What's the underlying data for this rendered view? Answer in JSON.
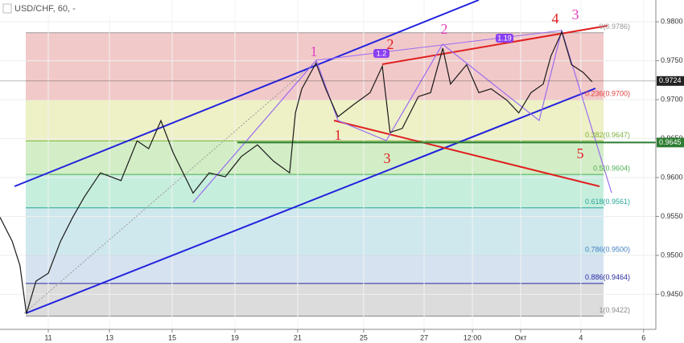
{
  "chart_data": {
    "type": "line",
    "title": "USD/CHF, 60, -",
    "x": [
      0,
      1.9,
      3.1,
      4.1,
      5.6,
      7.5,
      9.4,
      11.3,
      13.1,
      15.6,
      18.8,
      21.3,
      23.1,
      25,
      26.9,
      30,
      32.5,
      35,
      37.5,
      40,
      42.5,
      45,
      45.9,
      46.9,
      49.1,
      50.6,
      52.5,
      55,
      57.5,
      59.4,
      60.6,
      62.5,
      65,
      66.9,
      68.8,
      70,
      72.5,
      74.4,
      76.3,
      78.8,
      80.6,
      82.5,
      84.4,
      85.6,
      87.3,
      88.8,
      90.6,
      92
    ],
    "series": [
      {
        "name": "USD/CHF",
        "color": "#1a1a1a",
        "values": [
          0.9549,
          0.9518,
          0.9487,
          0.9425,
          0.9467,
          0.9477,
          0.9518,
          0.9549,
          0.9575,
          0.9606,
          0.9596,
          0.9647,
          0.9637,
          0.9673,
          0.9632,
          0.958,
          0.9606,
          0.9601,
          0.9627,
          0.9642,
          0.9621,
          0.9606,
          0.9683,
          0.9714,
          0.9747,
          0.9714,
          0.9678,
          0.9694,
          0.9709,
          0.9743,
          0.9658,
          0.9663,
          0.9704,
          0.9709,
          0.9766,
          0.972,
          0.9745,
          0.9709,
          0.9714,
          0.9699,
          0.9683,
          0.9709,
          0.972,
          0.9756,
          0.9787,
          0.9745,
          0.9735,
          0.9723
        ]
      }
    ],
    "xlim": [
      0,
      101.9
    ],
    "ylim": [
      0.9405,
      0.9828
    ],
    "xticks": [
      {
        "value": 7.5,
        "label": "11"
      },
      {
        "value": 17,
        "label": "13"
      },
      {
        "value": 26.75,
        "label": "15"
      },
      {
        "value": 36.5,
        "label": "19"
      },
      {
        "value": 46.25,
        "label": "21"
      },
      {
        "value": 56.5,
        "label": "25"
      },
      {
        "value": 65.9,
        "label": "27"
      },
      {
        "value": 73.4,
        "label": "12:00"
      },
      {
        "value": 80.9,
        "label": "Окт"
      },
      {
        "value": 90.25,
        "label": "4"
      },
      {
        "value": 100,
        "label": "6"
      }
    ],
    "yticks": [
      {
        "value": 0.945,
        "label": "0.9450"
      },
      {
        "value": 0.95,
        "label": "0.9500"
      },
      {
        "value": 0.955,
        "label": "0.9550"
      },
      {
        "value": 0.96,
        "label": "0.9600"
      },
      {
        "value": 0.965,
        "label": "0.9650"
      },
      {
        "value": 0.97,
        "label": "0.9700"
      },
      {
        "value": 0.975,
        "label": "0.9750"
      },
      {
        "value": 0.98,
        "label": "0.9800"
      }
    ],
    "fib_levels": [
      {
        "value": 0.9786,
        "label": "0(0.9786)",
        "color": "#999999",
        "band": "#f2c9c9"
      },
      {
        "value": 0.97,
        "label": "0.236(0.9700)",
        "color": "#e04040",
        "band": "#eef0c6"
      },
      {
        "value": 0.9647,
        "label": "0.382(0.9647)",
        "color": "#7cb342",
        "band": "#d3eec6"
      },
      {
        "value": 0.9604,
        "label": "0.5(0.9604)",
        "color": "#4caf50",
        "band": "#c6eedd"
      },
      {
        "value": 0.9561,
        "label": "0.618(0.9561)",
        "color": "#26a69a",
        "band": "#cfe8ee"
      },
      {
        "value": 0.95,
        "label": "0.786(0.9500)",
        "color": "#3f7fbf",
        "band": "#d6e2f0"
      },
      {
        "value": 0.9464,
        "label": "0.886(0.9464)",
        "color": "#2a2a9f",
        "band": "#dcdcdc"
      },
      {
        "value": 0.9422,
        "label": "1(0.9422)",
        "color": "#888888",
        "band": "#bdb9e2"
      }
    ],
    "price_tags": [
      {
        "value": 0.9724,
        "color": "#222222"
      },
      {
        "value": 0.9645,
        "color": "#2e7d32"
      }
    ],
    "annotations": [
      {
        "text": "1",
        "color": "#e040c0"
      },
      {
        "text": "2",
        "color": "#e040c0"
      },
      {
        "text": "3",
        "color": "#e040c0"
      },
      {
        "text": "1",
        "color": "#e02020"
      },
      {
        "text": "2",
        "color": "#e02020"
      },
      {
        "text": "3",
        "color": "#e02020"
      },
      {
        "text": "4",
        "color": "#e02020"
      },
      {
        "text": "5",
        "color": "#e02020"
      },
      {
        "text": "1.2",
        "color": "#8a3ff0"
      },
      {
        "text": "1.19",
        "color": "#8a3ff0"
      }
    ]
  }
}
